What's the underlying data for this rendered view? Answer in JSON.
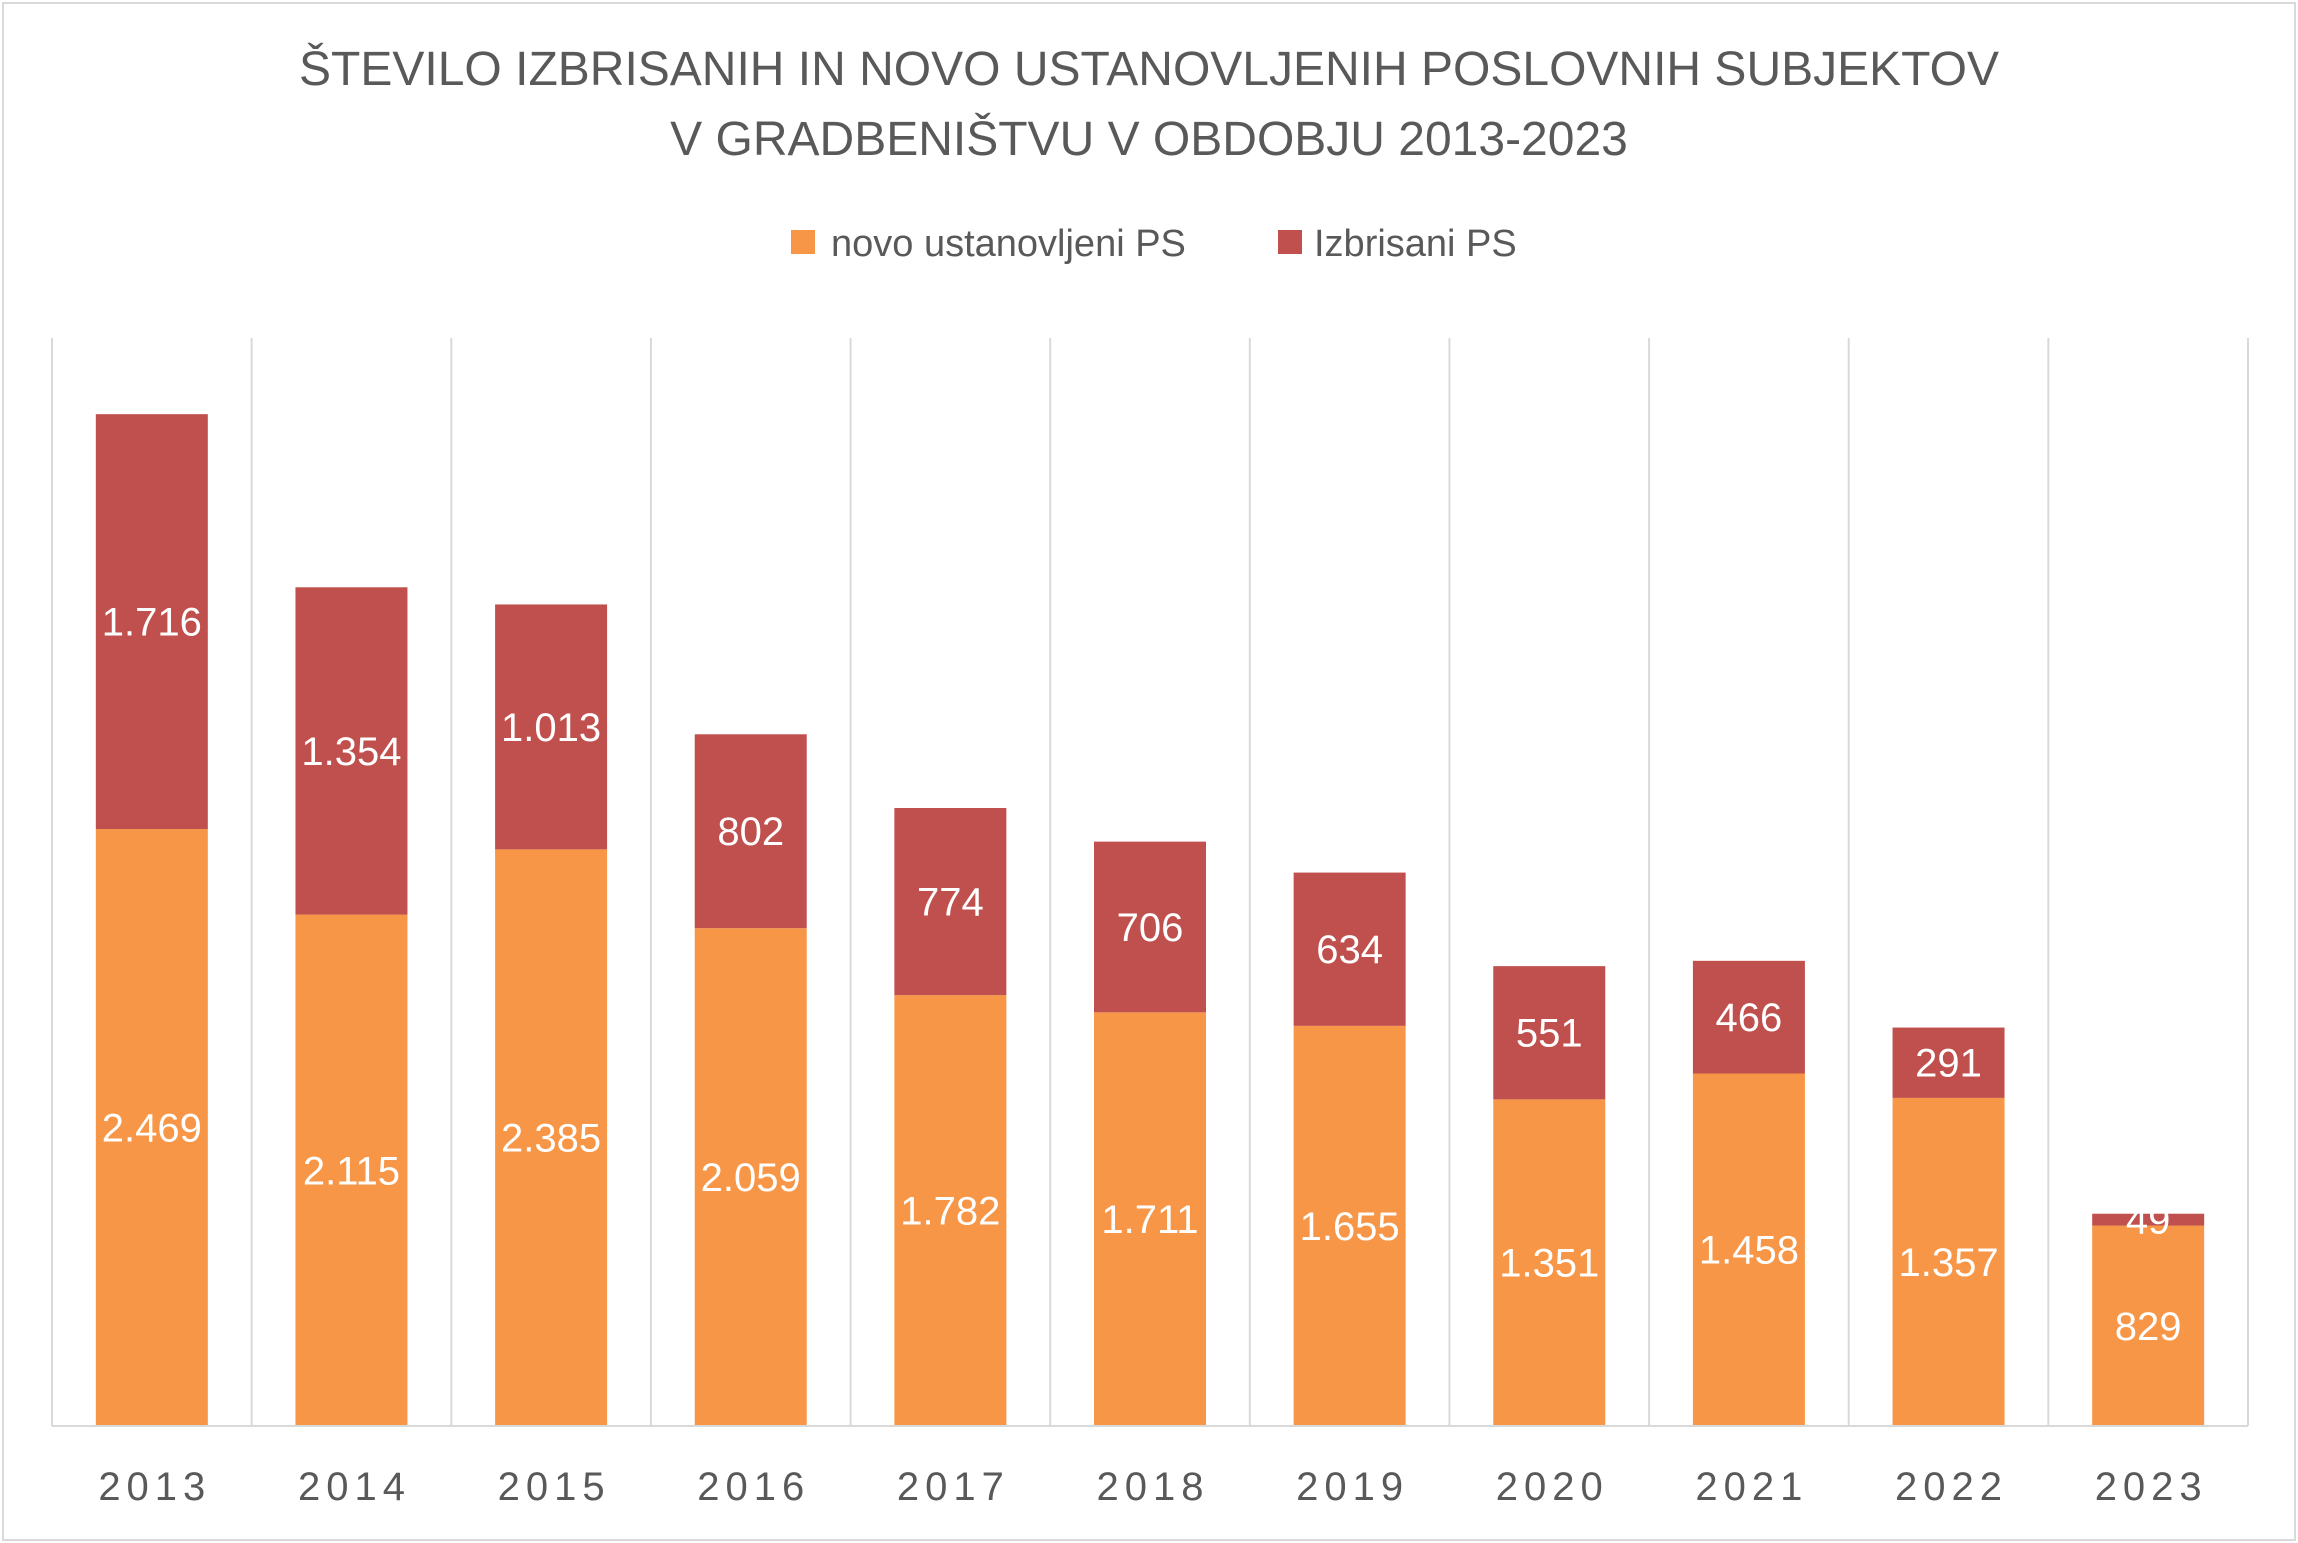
{
  "chart_data": {
    "type": "bar",
    "stacked": true,
    "title": [
      "ŠTEVILO IZBRISANIH IN NOVO USTANOVLJENIH POSLOVNIH SUBJEKTOV",
      "V GRADBENIŠTVU V OBDOBJU 2013-2023"
    ],
    "categories": [
      "2013",
      "2014",
      "2015",
      "2016",
      "2017",
      "2018",
      "2019",
      "2020",
      "2021",
      "2022",
      "2023"
    ],
    "series": [
      {
        "name": "novo ustanovljeni PS",
        "color": "#f79646",
        "values": [
          2469,
          2115,
          2385,
          2059,
          1782,
          1711,
          1655,
          1351,
          1458,
          1357,
          829
        ],
        "labels": [
          "2.469",
          "2.115",
          "2.385",
          "2.059",
          "1.782",
          "1.711",
          "1.655",
          "1.351",
          "1.458",
          "1.357",
          "829"
        ]
      },
      {
        "name": "Izbrisani PS",
        "color": "#c0504d",
        "values": [
          1716,
          1354,
          1013,
          802,
          774,
          706,
          634,
          551,
          466,
          291,
          49
        ],
        "labels": [
          "1.716",
          "1.354",
          "1.013",
          "802",
          "774",
          "706",
          "634",
          "551",
          "466",
          "291",
          "49"
        ]
      }
    ],
    "ylim": [
      0,
      4500
    ],
    "grid": "vertical",
    "legend_position": "top"
  }
}
